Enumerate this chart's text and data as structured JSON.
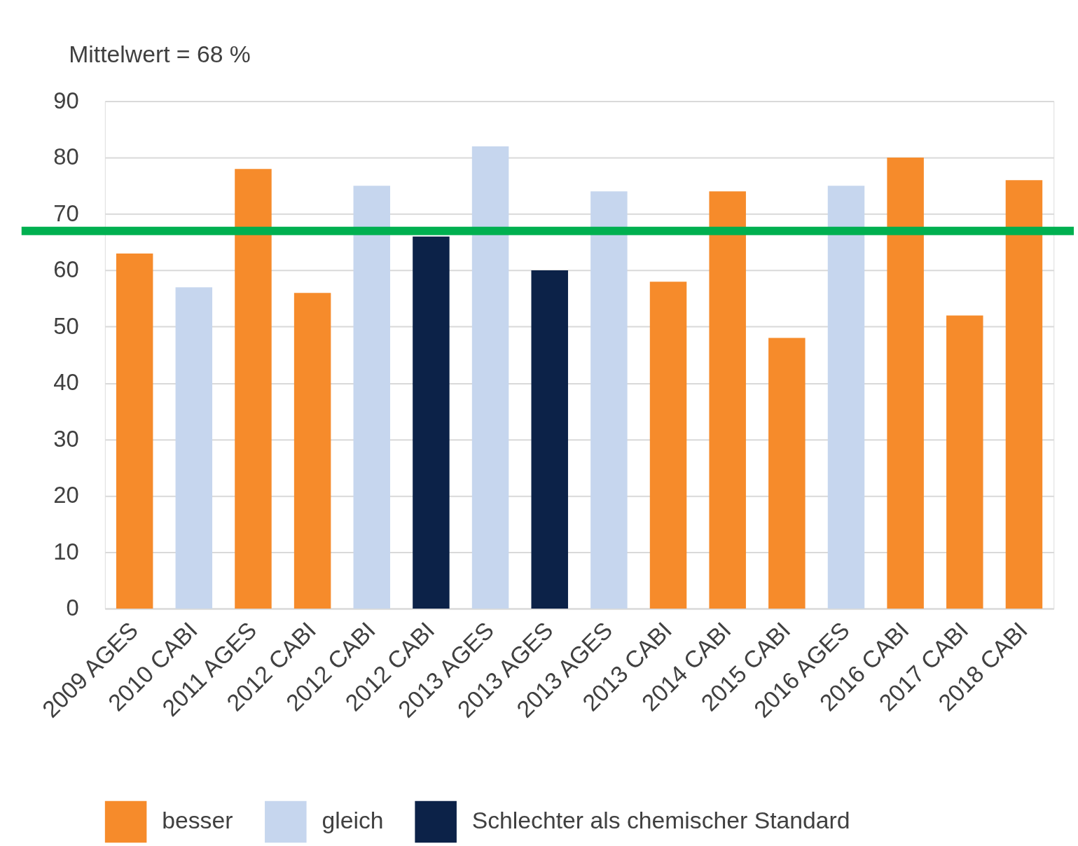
{
  "chart_data": {
    "type": "bar",
    "annotations": [
      "Mittelwert = 68 %"
    ],
    "categories": [
      "2009 AGES",
      "2010 CABI",
      "2011 AGES",
      "2012 CABI",
      "2012 CABI",
      "2012 CABI",
      "2013 AGES",
      "2013 AGES",
      "2013 AGES",
      "2013 CABI",
      "2014 CABI",
      "2015 CABI",
      "2016 AGES",
      "2016 CABI",
      "2017 CABI",
      "2018 CABI"
    ],
    "series": [
      {
        "name": "besser",
        "color": "#f68b2b",
        "values": [
          63,
          null,
          78,
          56,
          null,
          null,
          null,
          null,
          null,
          58,
          74,
          48,
          null,
          80,
          52,
          76
        ]
      },
      {
        "name": "gleich",
        "color": "#c6d6ee",
        "values": [
          null,
          57,
          null,
          null,
          75,
          null,
          82,
          null,
          74,
          null,
          null,
          null,
          75,
          null,
          null,
          null
        ]
      },
      {
        "name": "Schlechter als chemischer Standard",
        "color": "#0c2248",
        "values": [
          null,
          null,
          null,
          null,
          null,
          66,
          null,
          60,
          null,
          null,
          null,
          null,
          null,
          null,
          null,
          null
        ]
      }
    ],
    "stacked": true,
    "ylim": [
      0,
      90
    ],
    "yticks": [
      0,
      10,
      20,
      30,
      40,
      50,
      60,
      70,
      80,
      90
    ],
    "grid": "y",
    "legend": "bottom",
    "ref_lines": [
      {
        "axis": "y",
        "value": 67,
        "color": "#00b050"
      }
    ]
  }
}
